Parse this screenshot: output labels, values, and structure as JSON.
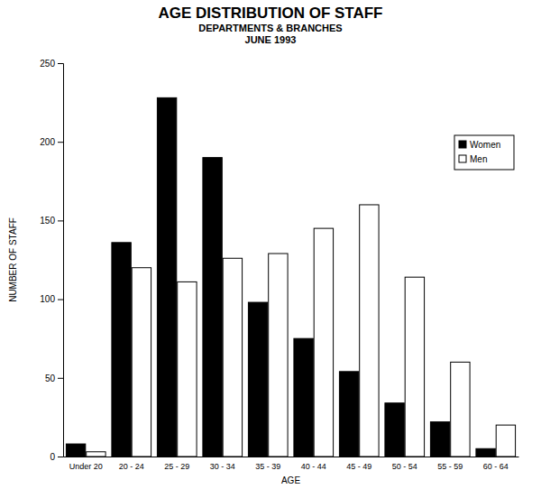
{
  "chart_data": {
    "type": "bar",
    "title": "AGE DISTRIBUTION OF STAFF",
    "subtitle": [
      "DEPARTMENTS & BRANCHES",
      "JUNE 1993"
    ],
    "x_label": "AGE",
    "y_label": "NUMBER OF STAFF",
    "categories": [
      "Under 20",
      "20 - 24",
      "25 - 29",
      "30 - 34",
      "35 - 39",
      "40 - 44",
      "45 - 49",
      "50 - 54",
      "55 - 59",
      "60 - 64"
    ],
    "series": [
      {
        "name": "Women",
        "color": "#000000",
        "values": [
          8,
          136,
          228,
          190,
          98,
          75,
          54,
          34,
          22,
          5
        ]
      },
      {
        "name": "Men",
        "color": "#ffffff",
        "values": [
          3,
          120,
          111,
          126,
          129,
          145,
          160,
          114,
          60,
          20
        ]
      }
    ],
    "ylim": [
      0,
      250
    ],
    "yticks": [
      0,
      50,
      100,
      150,
      200,
      250
    ],
    "grid": false,
    "legend": "top-right"
  }
}
